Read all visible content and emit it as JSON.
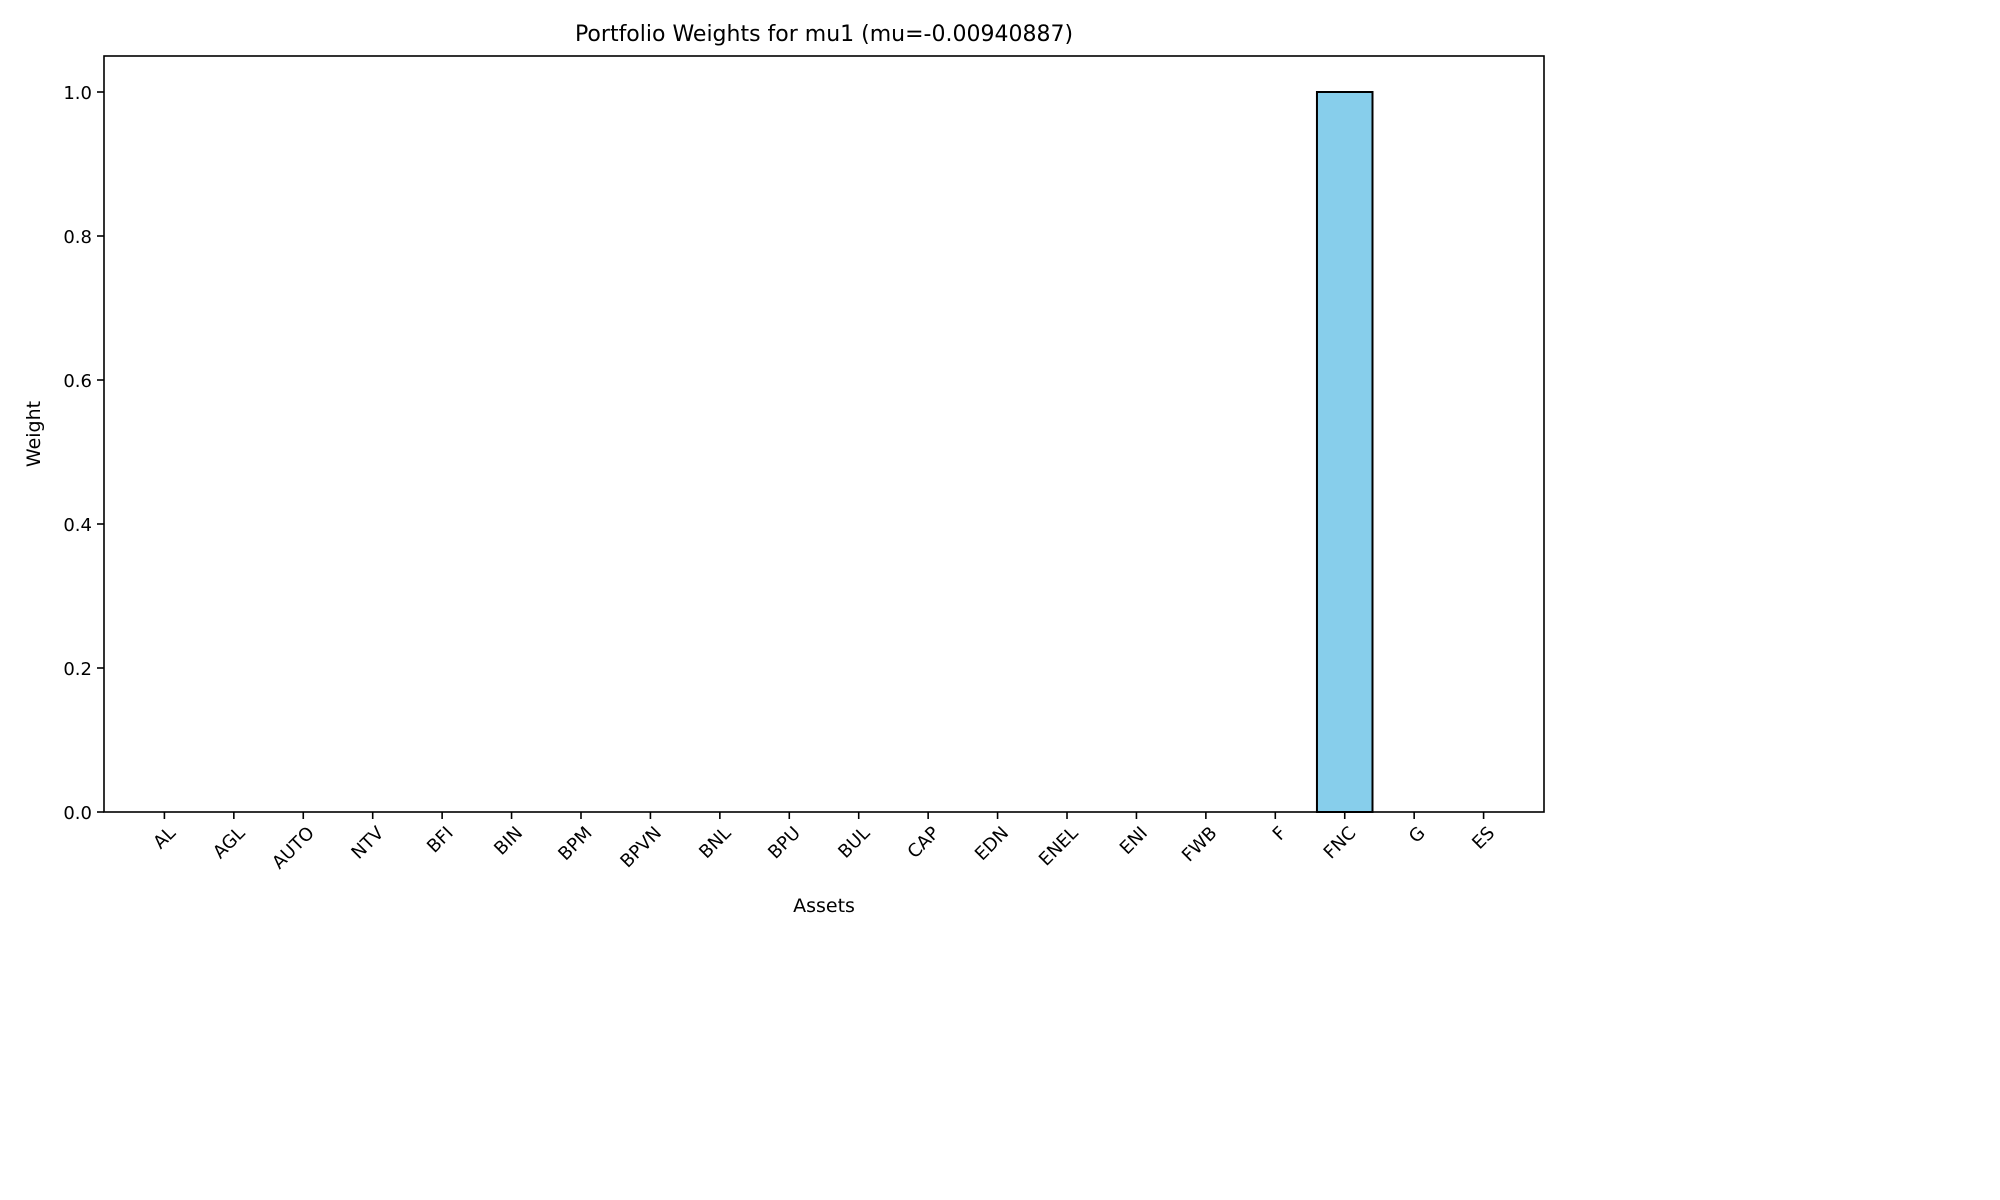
{
  "chart_data": {
    "type": "bar",
    "title": "Portfolio Weights for mu1 (mu=-0.00940887)",
    "xlabel": "Assets",
    "ylabel": "Weight",
    "categories": [
      "AL",
      "AGL",
      "AUTO",
      "NTV",
      "BFI",
      "BIN",
      "BPM",
      "BPVN",
      "BNL",
      "BPU",
      "BUL",
      "CAP",
      "EDN",
      "ENEL",
      "ENI",
      "FWB",
      "F",
      "FNC",
      "G",
      "ES"
    ],
    "values": [
      0,
      0,
      0,
      0,
      0,
      0,
      0,
      0,
      0,
      0,
      0,
      0,
      0,
      0,
      0,
      0,
      0,
      1.0,
      0,
      0
    ],
    "ylim": [
      0,
      1.05
    ],
    "yticks": [
      0.0,
      0.2,
      0.4,
      0.6,
      0.8,
      1.0
    ],
    "ytick_labels": [
      "0.0",
      "0.2",
      "0.4",
      "0.6",
      "0.8",
      "1.0"
    ],
    "grid": false,
    "bar_color": "#87ceeb",
    "bar_edge_color": "#000000"
  }
}
